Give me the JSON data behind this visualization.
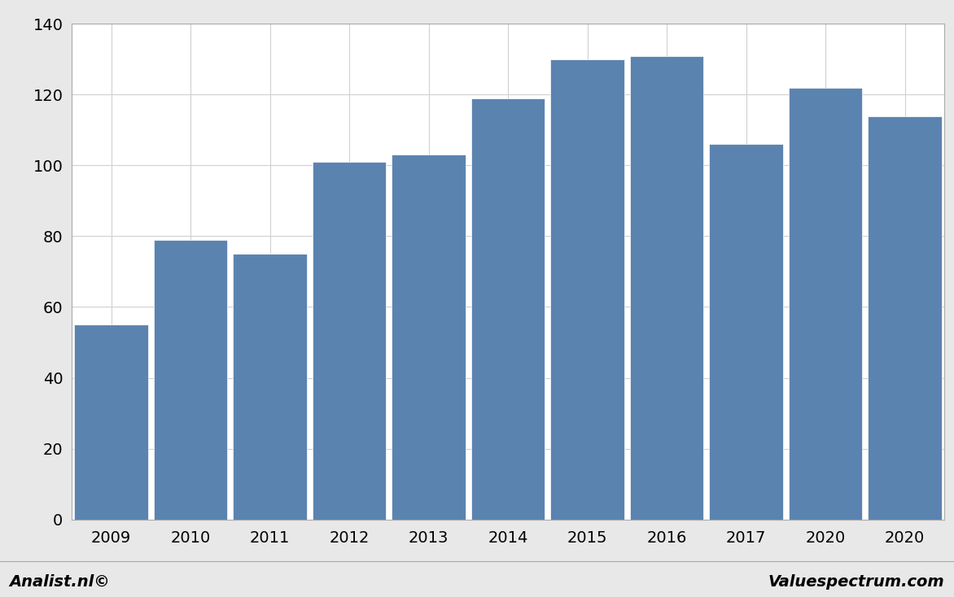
{
  "categories": [
    "2009",
    "2010",
    "2011",
    "2012",
    "2013",
    "2014",
    "2015",
    "2016",
    "2017",
    "2020",
    "2020"
  ],
  "values": [
    55,
    79,
    75,
    101,
    103,
    119,
    130,
    131,
    106,
    122,
    114
  ],
  "bar_color": "#5b83b0",
  "background_color": "#e8e8e8",
  "plot_bg_color": "#ffffff",
  "ylim": [
    0,
    140
  ],
  "yticks": [
    0,
    20,
    40,
    60,
    80,
    100,
    120,
    140
  ],
  "grid_color": "#d0d0d0",
  "footer_left": "Analist.nl©",
  "footer_right": "Valuespectrum.com",
  "footer_fontsize": 14,
  "tick_fontsize": 14,
  "bar_width": 0.93
}
